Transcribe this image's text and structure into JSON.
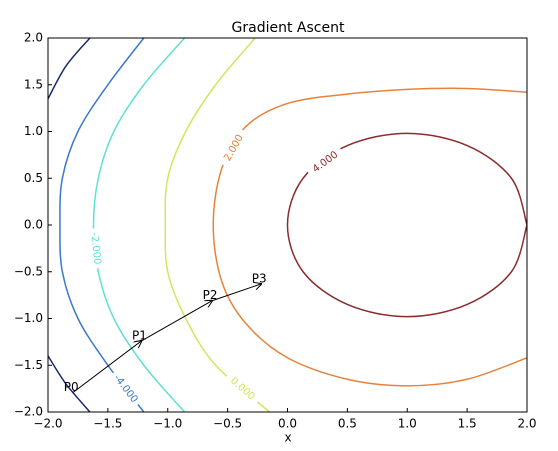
{
  "chart_data": {
    "type": "contour",
    "title": "Gradient Ascent",
    "x_label": "x",
    "xlim": [
      -2,
      2
    ],
    "ylim": [
      -2,
      2
    ],
    "xticks": [
      {
        "value": -2,
        "label": "−2.0"
      },
      {
        "value": -1.5,
        "label": "−1.5"
      },
      {
        "value": -1,
        "label": "−1.0"
      },
      {
        "value": -0.5,
        "label": "−0.5"
      },
      {
        "value": 0,
        "label": "0.0"
      },
      {
        "value": 0.5,
        "label": "0.5"
      },
      {
        "value": 1,
        "label": "1.0"
      },
      {
        "value": 1.5,
        "label": "1.5"
      },
      {
        "value": 2,
        "label": "2.0"
      }
    ],
    "yticks": [
      {
        "value": -2,
        "label": "−2.0"
      },
      {
        "value": -1.5,
        "label": "−1.5"
      },
      {
        "value": -1,
        "label": "−1.0"
      },
      {
        "value": -0.5,
        "label": "−0.5"
      },
      {
        "value": 0,
        "label": "0.0"
      },
      {
        "value": 0.5,
        "label": "0.5"
      },
      {
        "value": 1,
        "label": "1.0"
      },
      {
        "value": 1.5,
        "label": "1.5"
      },
      {
        "value": 2,
        "label": "2.0"
      }
    ],
    "series": [
      {
        "name": "4.000",
        "color": "#8b2c2c",
        "x": [
          2,
          1.87,
          1.5,
          1,
          0.5,
          0.13,
          0,
          0.13,
          0.5,
          1,
          1.5,
          1.87,
          2
        ],
        "y": [
          0,
          0.5,
          0.85,
          0.98,
          0.85,
          0.5,
          0,
          -0.5,
          -0.85,
          -0.98,
          -0.85,
          -0.5,
          0
        ]
      },
      {
        "name": "2.000",
        "color": "#e8823a",
        "x": [
          2,
          1.5,
          1,
          0.5,
          0,
          -0.35,
          -0.55,
          -0.62,
          -0.55,
          -0.35,
          0,
          0.5,
          1,
          1.5,
          2
        ],
        "y": [
          1.42,
          1.46,
          1.45,
          1.4,
          1.3,
          1.05,
          0.6,
          0,
          -0.6,
          -1.05,
          -1.42,
          -1.65,
          -1.72,
          -1.65,
          -1.42
        ]
      },
      {
        "name": "0.000",
        "color": "#d2e65a",
        "x": [
          -0.27,
          -0.6,
          -0.85,
          -1,
          -1.02,
          -1,
          -0.85,
          -0.6,
          -0.15
        ],
        "y": [
          2,
          1.5,
          1,
          0.5,
          0,
          -0.5,
          -1,
          -1.5,
          -2
        ]
      },
      {
        "name": "-2.000",
        "color": "#5ee0d6",
        "x": [
          -0.86,
          -1.2,
          -1.45,
          -1.58,
          -1.62,
          -1.58,
          -1.45,
          -1.2,
          -0.86
        ],
        "y": [
          2,
          1.5,
          1,
          0.5,
          0,
          -0.5,
          -1,
          -1.5,
          -2
        ]
      },
      {
        "name": "-4.000",
        "color": "#3a78c8",
        "x": [
          -1.2,
          -1.5,
          -1.75,
          -1.88,
          -1.9,
          -1.88,
          -1.75,
          -1.5,
          -1.2
        ],
        "y": [
          2,
          1.5,
          1,
          0.5,
          0,
          -0.5,
          -1,
          -1.5,
          -2
        ]
      },
      {
        "color": "#1c2a6e",
        "x": [
          -1.65,
          -1.85,
          -2,
          null,
          -2,
          -1.85,
          -1.65
        ],
        "y": [
          2,
          1.7,
          1.35,
          null,
          -1.4,
          -1.7,
          -2
        ]
      }
    ],
    "points": {
      "labels": [
        "P0",
        "P1",
        "P2",
        "P3"
      ],
      "x": [
        -1.79,
        -1.22,
        -0.63,
        -0.22
      ],
      "y": [
        -1.79,
        -1.24,
        -0.81,
        -0.63
      ]
    }
  }
}
